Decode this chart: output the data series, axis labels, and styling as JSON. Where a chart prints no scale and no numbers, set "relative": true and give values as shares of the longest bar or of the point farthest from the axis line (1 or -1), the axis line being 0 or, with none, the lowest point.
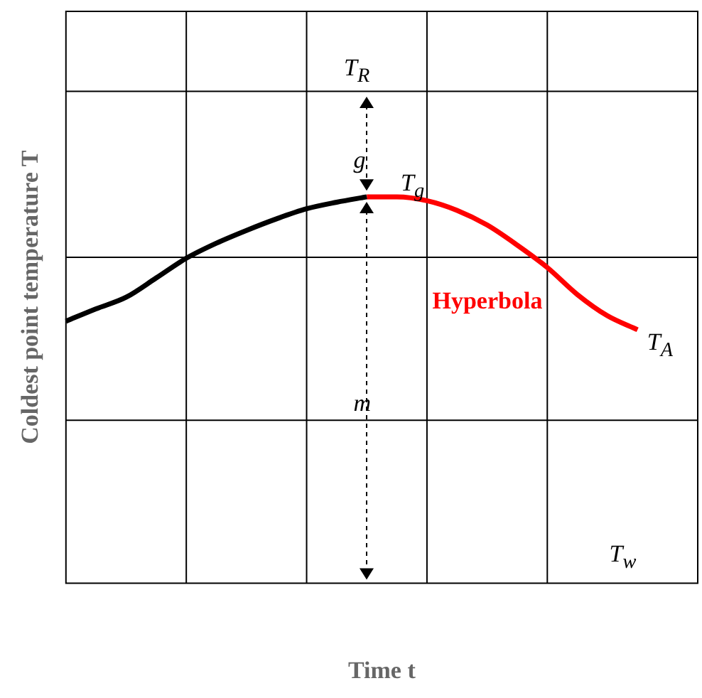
{
  "chart_data": {
    "type": "line",
    "relative": true,
    "xlabel": "Time t",
    "ylabel": "Coldest point temperature T",
    "grid": true,
    "marker": "none",
    "legend": false,
    "categories": [
      null,
      null,
      null,
      null,
      null,
      null,
      null,
      null,
      null,
      null,
      null,
      null,
      null,
      null,
      null,
      null,
      null,
      null,
      null,
      null,
      null,
      null
    ],
    "series": [
      {
        "color": "#000000",
        "values": [
          0.678,
          0.71,
          0.74,
          0.79,
          0.841,
          0.88,
          0.913,
          0.943,
          0.969,
          0.986,
          1,
          null,
          null,
          null,
          null,
          null,
          null,
          null,
          null,
          null,
          null,
          null
        ]
      },
      {
        "name": "Hyperbola",
        "color": "#ff0000",
        "values": [
          null,
          null,
          null,
          null,
          null,
          null,
          null,
          null,
          null,
          null,
          1,
          1,
          0.99,
          0.965,
          0.927,
          0.875,
          0.817,
          0.747,
          0.692,
          0.656,
          null,
          null
        ]
      }
    ],
    "annotations": [
      "T$_{R}$",
      "g",
      "T$_{g}$",
      "m",
      "T$_{A}$",
      "T$_{w}$"
    ]
  }
}
